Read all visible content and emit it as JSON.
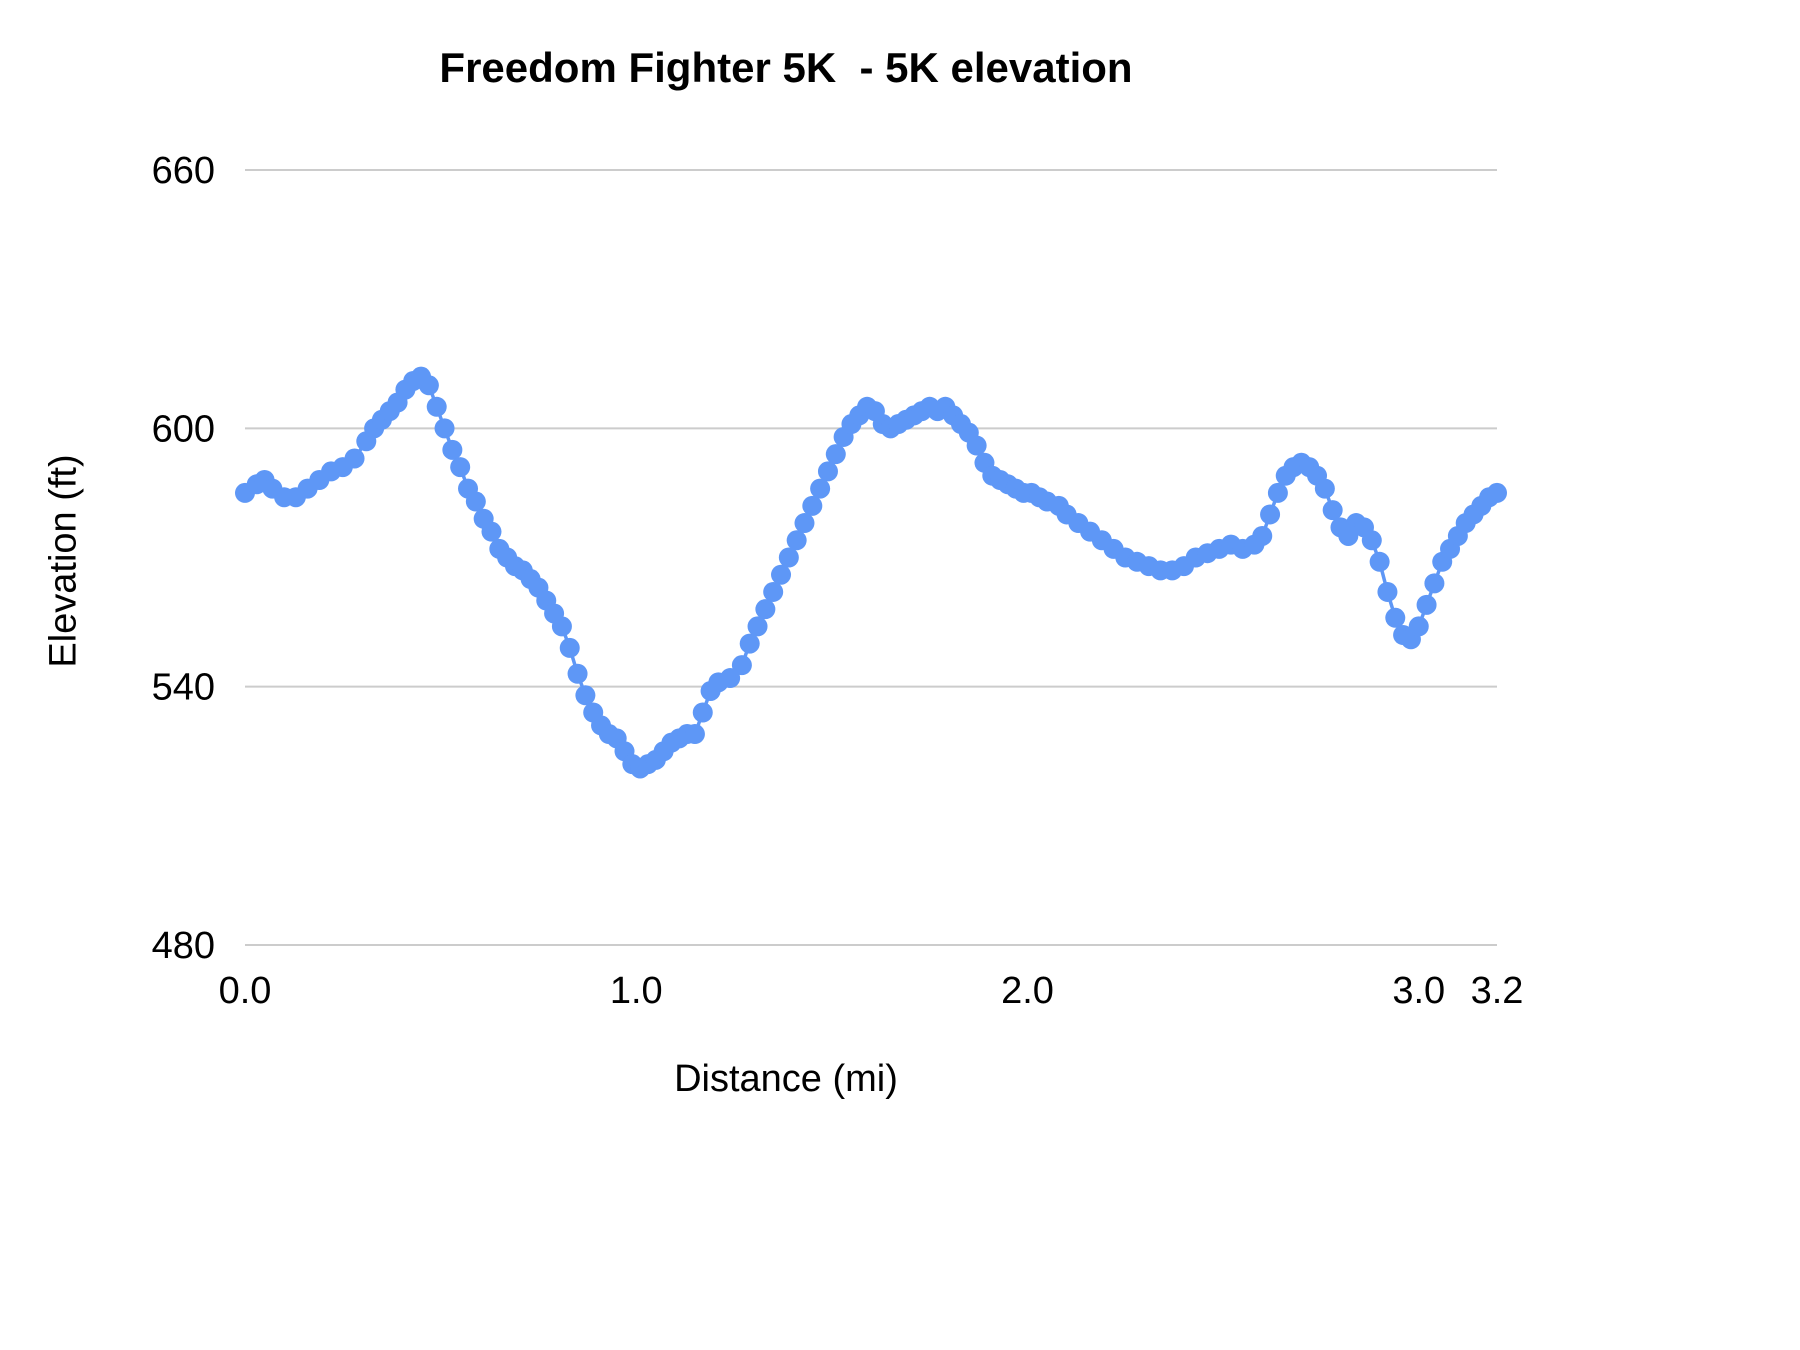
{
  "chart_data": {
    "type": "line",
    "title": "Freedom Fighter 5K  - 5K elevation",
    "xlabel": "Distance (mi)",
    "ylabel": "Elevation (ft)",
    "xlim": [
      0.0,
      3.2
    ],
    "ylim": [
      480,
      660
    ],
    "grid": "horizontal-only",
    "legend": "none",
    "grid_color": "#cccccc",
    "axis_text_color": "#000000",
    "background_color": "#ffffff",
    "x_ticks": [
      {
        "value": 0.0,
        "label": "0.0"
      },
      {
        "value": 1.0,
        "label": "1.0"
      },
      {
        "value": 2.0,
        "label": "2.0"
      },
      {
        "value": 3.0,
        "label": "3.0"
      },
      {
        "value": 3.2,
        "label": "3.2"
      }
    ],
    "y_ticks": [
      {
        "value": 480,
        "label": "480"
      },
      {
        "value": 540,
        "label": "540"
      },
      {
        "value": 600,
        "label": "600"
      },
      {
        "value": 660,
        "label": "660"
      }
    ],
    "series": [
      {
        "name": "elevation",
        "color": "#5e97f6",
        "marker_radius": 10,
        "line_width": 3.5,
        "points": [
          [
            0.0,
            585
          ],
          [
            0.03,
            587
          ],
          [
            0.05,
            588
          ],
          [
            0.07,
            586
          ],
          [
            0.1,
            584
          ],
          [
            0.13,
            584
          ],
          [
            0.16,
            586
          ],
          [
            0.19,
            588
          ],
          [
            0.22,
            590
          ],
          [
            0.25,
            591
          ],
          [
            0.28,
            593
          ],
          [
            0.31,
            597
          ],
          [
            0.33,
            600
          ],
          [
            0.35,
            602
          ],
          [
            0.37,
            604
          ],
          [
            0.39,
            606
          ],
          [
            0.41,
            609
          ],
          [
            0.43,
            611
          ],
          [
            0.45,
            612
          ],
          [
            0.47,
            610
          ],
          [
            0.49,
            605
          ],
          [
            0.51,
            600
          ],
          [
            0.53,
            595
          ],
          [
            0.55,
            591
          ],
          [
            0.57,
            586
          ],
          [
            0.59,
            583
          ],
          [
            0.61,
            579
          ],
          [
            0.63,
            576
          ],
          [
            0.65,
            572
          ],
          [
            0.67,
            570
          ],
          [
            0.69,
            568
          ],
          [
            0.71,
            567
          ],
          [
            0.73,
            565
          ],
          [
            0.75,
            563
          ],
          [
            0.77,
            560
          ],
          [
            0.79,
            557
          ],
          [
            0.81,
            554
          ],
          [
            0.83,
            549
          ],
          [
            0.85,
            543
          ],
          [
            0.87,
            538
          ],
          [
            0.89,
            534
          ],
          [
            0.91,
            531
          ],
          [
            0.93,
            529
          ],
          [
            0.95,
            528
          ],
          [
            0.97,
            525
          ],
          [
            0.99,
            522
          ],
          [
            1.01,
            521
          ],
          [
            1.03,
            522
          ],
          [
            1.05,
            523
          ],
          [
            1.07,
            525
          ],
          [
            1.09,
            527
          ],
          [
            1.11,
            528
          ],
          [
            1.13,
            529
          ],
          [
            1.15,
            529
          ],
          [
            1.17,
            534
          ],
          [
            1.19,
            539
          ],
          [
            1.21,
            541
          ],
          [
            1.24,
            542
          ],
          [
            1.27,
            545
          ],
          [
            1.29,
            550
          ],
          [
            1.31,
            554
          ],
          [
            1.33,
            558
          ],
          [
            1.35,
            562
          ],
          [
            1.37,
            566
          ],
          [
            1.39,
            570
          ],
          [
            1.41,
            574
          ],
          [
            1.43,
            578
          ],
          [
            1.45,
            582
          ],
          [
            1.47,
            586
          ],
          [
            1.49,
            590
          ],
          [
            1.51,
            594
          ],
          [
            1.53,
            598
          ],
          [
            1.55,
            601
          ],
          [
            1.57,
            603
          ],
          [
            1.59,
            605
          ],
          [
            1.61,
            604
          ],
          [
            1.63,
            601
          ],
          [
            1.65,
            600
          ],
          [
            1.67,
            601
          ],
          [
            1.69,
            602
          ],
          [
            1.71,
            603
          ],
          [
            1.73,
            604
          ],
          [
            1.75,
            605
          ],
          [
            1.77,
            604
          ],
          [
            1.79,
            605
          ],
          [
            1.81,
            603
          ],
          [
            1.83,
            601
          ],
          [
            1.85,
            599
          ],
          [
            1.87,
            596
          ],
          [
            1.89,
            592
          ],
          [
            1.91,
            589
          ],
          [
            1.93,
            588
          ],
          [
            1.95,
            587
          ],
          [
            1.97,
            586
          ],
          [
            1.99,
            585
          ],
          [
            2.01,
            585
          ],
          [
            2.03,
            584
          ],
          [
            2.05,
            583
          ],
          [
            2.08,
            582
          ],
          [
            2.1,
            580
          ],
          [
            2.13,
            578
          ],
          [
            2.16,
            576
          ],
          [
            2.19,
            574
          ],
          [
            2.22,
            572
          ],
          [
            2.25,
            570
          ],
          [
            2.28,
            569
          ],
          [
            2.31,
            568
          ],
          [
            2.34,
            567
          ],
          [
            2.37,
            567
          ],
          [
            2.4,
            568
          ],
          [
            2.43,
            570
          ],
          [
            2.46,
            571
          ],
          [
            2.49,
            572
          ],
          [
            2.52,
            573
          ],
          [
            2.55,
            572
          ],
          [
            2.58,
            573
          ],
          [
            2.6,
            575
          ],
          [
            2.62,
            580
          ],
          [
            2.64,
            585
          ],
          [
            2.66,
            589
          ],
          [
            2.68,
            591
          ],
          [
            2.7,
            592
          ],
          [
            2.72,
            591
          ],
          [
            2.74,
            589
          ],
          [
            2.76,
            586
          ],
          [
            2.78,
            581
          ],
          [
            2.8,
            577
          ],
          [
            2.82,
            575
          ],
          [
            2.84,
            578
          ],
          [
            2.86,
            577
          ],
          [
            2.88,
            574
          ],
          [
            2.9,
            569
          ],
          [
            2.92,
            562
          ],
          [
            2.94,
            556
          ],
          [
            2.96,
            552
          ],
          [
            2.98,
            551
          ],
          [
            3.0,
            554
          ],
          [
            3.02,
            559
          ],
          [
            3.04,
            564
          ],
          [
            3.06,
            569
          ],
          [
            3.08,
            572
          ],
          [
            3.1,
            575
          ],
          [
            3.12,
            578
          ],
          [
            3.14,
            580
          ],
          [
            3.16,
            582
          ],
          [
            3.18,
            584
          ],
          [
            3.2,
            585
          ]
        ]
      }
    ]
  }
}
